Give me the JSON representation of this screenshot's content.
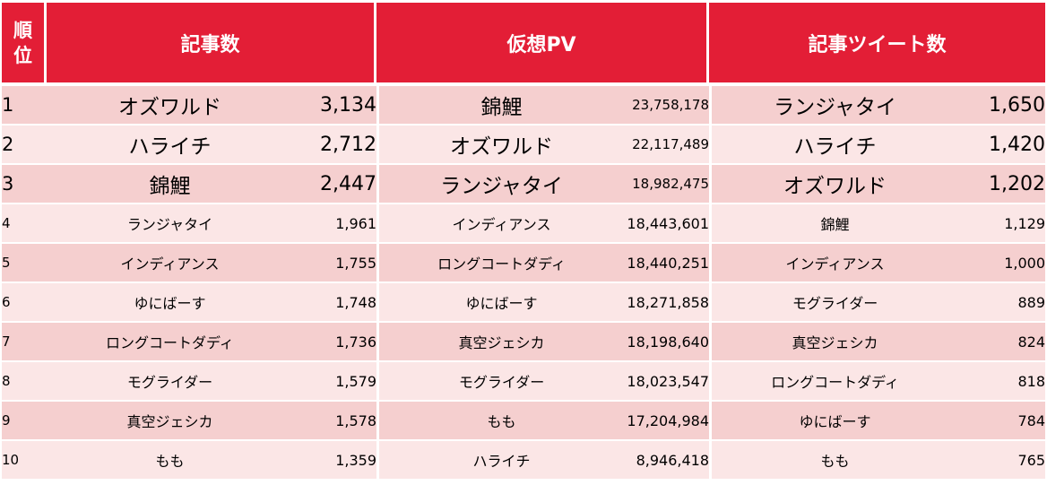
{
  "header": {
    "rank": "順位",
    "articles": "記事数",
    "pv": "仮想PV",
    "tweets": "記事ツイート数"
  },
  "rows": [
    {
      "rank": "1",
      "a_name": "オズワルド",
      "a_val": "3,134",
      "p_name": "錦鯉",
      "p_val": "23,758,178",
      "t_name": "ランジャタイ",
      "t_val": "1,650"
    },
    {
      "rank": "2",
      "a_name": "ハライチ",
      "a_val": "2,712",
      "p_name": "オズワルド",
      "p_val": "22,117,489",
      "t_name": "ハライチ",
      "t_val": "1,420"
    },
    {
      "rank": "3",
      "a_name": "錦鯉",
      "a_val": "2,447",
      "p_name": "ランジャタイ",
      "p_val": "18,982,475",
      "t_name": "オズワルド",
      "t_val": "1,202"
    },
    {
      "rank": "4",
      "a_name": "ランジャタイ",
      "a_val": "1,961",
      "p_name": "インディアンス",
      "p_val": "18,443,601",
      "t_name": "錦鯉",
      "t_val": "1,129"
    },
    {
      "rank": "5",
      "a_name": "インディアンス",
      "a_val": "1,755",
      "p_name": "ロングコートダディ",
      "p_val": "18,440,251",
      "t_name": "インディアンス",
      "t_val": "1,000"
    },
    {
      "rank": "6",
      "a_name": "ゆにばーす",
      "a_val": "1,748",
      "p_name": "ゆにばーす",
      "p_val": "18,271,858",
      "t_name": "モグライダー",
      "t_val": "889"
    },
    {
      "rank": "7",
      "a_name": "ロングコートダディ",
      "a_val": "1,736",
      "p_name": "真空ジェシカ",
      "p_val": "18,198,640",
      "t_name": "真空ジェシカ",
      "t_val": "824"
    },
    {
      "rank": "8",
      "a_name": "モグライダー",
      "a_val": "1,579",
      "p_name": "モグライダー",
      "p_val": "18,023,547",
      "t_name": "ロングコートダディ",
      "t_val": "818"
    },
    {
      "rank": "9",
      "a_name": "真空ジェシカ",
      "a_val": "1,578",
      "p_name": "もも",
      "p_val": "17,204,984",
      "t_name": "ゆにばーす",
      "t_val": "784"
    },
    {
      "rank": "10",
      "a_name": "もも",
      "a_val": "1,359",
      "p_name": "ハライチ",
      "p_val": "8,946,418",
      "t_name": "もも",
      "t_val": "765"
    }
  ]
}
